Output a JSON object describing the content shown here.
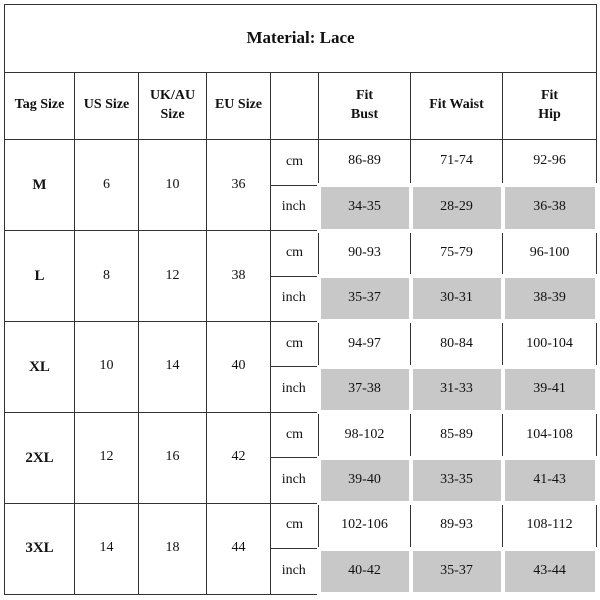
{
  "title": "Material: Lace",
  "headers": {
    "tag_size": "Tag Size",
    "us_size": "US Size",
    "uk_au_line1": "UK/AU",
    "uk_au_line2": "Size",
    "eu_size": "EU Size",
    "unit": "",
    "bust_line1": "Fit",
    "bust_line2": "Bust",
    "waist": "Fit Waist",
    "hip_line1": "Fit",
    "hip_line2": "Hip"
  },
  "unit_labels": {
    "cm": "cm",
    "inch": "inch"
  },
  "rows": [
    {
      "tag": "M",
      "us": "6",
      "ukau": "10",
      "eu": "36",
      "cm": {
        "bust": "86-89",
        "waist": "71-74",
        "hip": "92-96"
      },
      "inch": {
        "bust": "34-35",
        "waist": "28-29",
        "hip": "36-38"
      }
    },
    {
      "tag": "L",
      "us": "8",
      "ukau": "12",
      "eu": "38",
      "cm": {
        "bust": "90-93",
        "waist": "75-79",
        "hip": "96-100"
      },
      "inch": {
        "bust": "35-37",
        "waist": "30-31",
        "hip": "38-39"
      }
    },
    {
      "tag": "XL",
      "us": "10",
      "ukau": "14",
      "eu": "40",
      "cm": {
        "bust": "94-97",
        "waist": "80-84",
        "hip": "100-104"
      },
      "inch": {
        "bust": "37-38",
        "waist": "31-33",
        "hip": "39-41"
      }
    },
    {
      "tag": "2XL",
      "us": "12",
      "ukau": "16",
      "eu": "42",
      "cm": {
        "bust": "98-102",
        "waist": "85-89",
        "hip": "104-108"
      },
      "inch": {
        "bust": "39-40",
        "waist": "33-35",
        "hip": "41-43"
      }
    },
    {
      "tag": "3XL",
      "us": "14",
      "ukau": "18",
      "eu": "44",
      "cm": {
        "bust": "102-106",
        "waist": "89-93",
        "hip": "108-112"
      },
      "inch": {
        "bust": "40-42",
        "waist": "35-37",
        "hip": "43-44"
      }
    }
  ],
  "colors": {
    "inch_cell_fill": "#c8c8c8",
    "border": "#333333"
  }
}
